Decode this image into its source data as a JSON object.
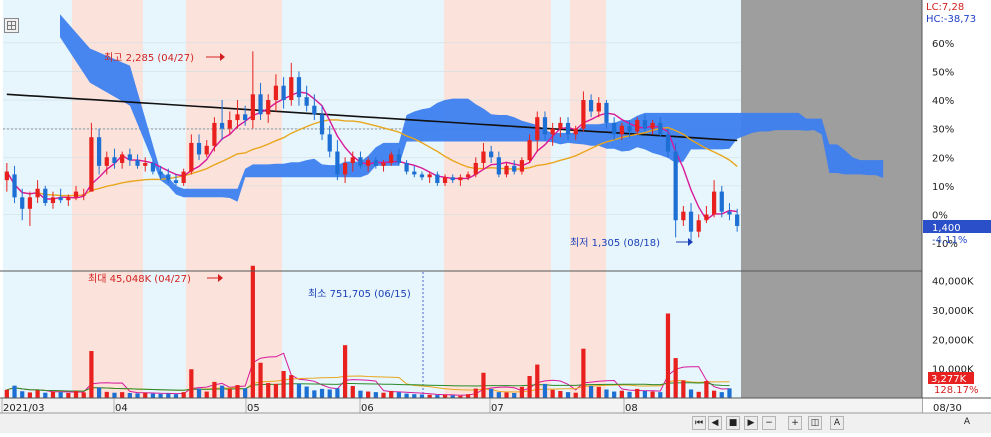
{
  "indicator": {
    "lc": "LC:7,28",
    "hc": "HC:-38,73"
  },
  "price_axis": {
    "ticks": [
      "60%",
      "50%",
      "40%",
      "30%",
      "20%",
      "10%",
      "0%"
    ],
    "hidden_tick": "-10%"
  },
  "volume_axis": {
    "ticks": [
      "40,000K",
      "30,000K",
      "20,000K",
      "10,000K"
    ]
  },
  "current": {
    "price": "1,400",
    "change": "-4.11%",
    "volume": "3,277K",
    "volume_ratio": "128.17%"
  },
  "annotations": {
    "high": "최고 2,285 (04/27)",
    "low": "최저 1,305 (08/18)",
    "vol_max": "최대 45,048K (04/27)",
    "vol_min": "최소 751,705 (06/15)"
  },
  "date_labels": [
    "2021/03",
    "04",
    "05",
    "06",
    "07",
    "08"
  ],
  "date_end": "08/30",
  "colors": {
    "up": "#e8201e",
    "down": "#1d6fd3",
    "cloud": "#3d7ff0",
    "ma_long": "#111111",
    "ma_mid": "#e9a61d",
    "ma_short": "#d9179a",
    "bg_blue": "#e7f6fc",
    "bg_pink": "#fbe3db",
    "future": "#9e9e9e"
  },
  "nav_icons": [
    "first-icon",
    "prev-icon",
    "stop-icon",
    "next-icon",
    "zoom-out-icon",
    "zoom-in-icon",
    "zoom-fit-icon",
    "font-size-icon"
  ],
  "nav_last_label": "A",
  "chart_data": [
    {
      "type": "candlestick",
      "y_unit": "% vs base price",
      "ylim": [
        -12,
        73
      ],
      "y_ticks": [
        0,
        10,
        20,
        30,
        40,
        50,
        60
      ],
      "x_start": "2021/03",
      "x_end": "08/30",
      "candles": [
        {
          "o": 12,
          "h": 18,
          "l": 8,
          "c": 15
        },
        {
          "o": 14,
          "h": 17,
          "l": 4,
          "c": 6
        },
        {
          "o": 6,
          "h": 9,
          "l": -2,
          "c": 2
        },
        {
          "o": 2,
          "h": 8,
          "l": -4,
          "c": 6
        },
        {
          "o": 6,
          "h": 12,
          "l": 4,
          "c": 9
        },
        {
          "o": 9,
          "h": 10,
          "l": 3,
          "c": 4
        },
        {
          "o": 4,
          "h": 8,
          "l": 2,
          "c": 6
        },
        {
          "o": 6,
          "h": 9,
          "l": 4,
          "c": 5
        },
        {
          "o": 5,
          "h": 7,
          "l": 3,
          "c": 6
        },
        {
          "o": 6,
          "h": 10,
          "l": 5,
          "c": 8
        },
        {
          "o": 7,
          "h": 9,
          "l": 5,
          "c": 7
        },
        {
          "o": 8,
          "h": 32,
          "l": 8,
          "c": 27
        },
        {
          "o": 27,
          "h": 30,
          "l": 14,
          "c": 17
        },
        {
          "o": 17,
          "h": 22,
          "l": 14,
          "c": 20
        },
        {
          "o": 20,
          "h": 23,
          "l": 16,
          "c": 18
        },
        {
          "o": 18,
          "h": 22,
          "l": 16,
          "c": 21
        },
        {
          "o": 21,
          "h": 23,
          "l": 17,
          "c": 19
        },
        {
          "o": 19,
          "h": 21,
          "l": 16,
          "c": 17
        },
        {
          "o": 17,
          "h": 20,
          "l": 15,
          "c": 18
        },
        {
          "o": 18,
          "h": 19,
          "l": 14,
          "c": 15
        },
        {
          "o": 15,
          "h": 17,
          "l": 12,
          "c": 14
        },
        {
          "o": 14,
          "h": 16,
          "l": 11,
          "c": 12
        },
        {
          "o": 12,
          "h": 14,
          "l": 10,
          "c": 11
        },
        {
          "o": 11,
          "h": 16,
          "l": 10,
          "c": 15
        },
        {
          "o": 15,
          "h": 28,
          "l": 14,
          "c": 25
        },
        {
          "o": 25,
          "h": 28,
          "l": 19,
          "c": 21
        },
        {
          "o": 21,
          "h": 26,
          "l": 20,
          "c": 24
        },
        {
          "o": 24,
          "h": 34,
          "l": 22,
          "c": 32
        },
        {
          "o": 32,
          "h": 40,
          "l": 26,
          "c": 30
        },
        {
          "o": 30,
          "h": 36,
          "l": 28,
          "c": 33
        },
        {
          "o": 33,
          "h": 40,
          "l": 30,
          "c": 35
        },
        {
          "o": 35,
          "h": 38,
          "l": 31,
          "c": 33
        },
        {
          "o": 33,
          "h": 57,
          "l": 30,
          "c": 42
        },
        {
          "o": 42,
          "h": 46,
          "l": 33,
          "c": 35
        },
        {
          "o": 35,
          "h": 42,
          "l": 32,
          "c": 40
        },
        {
          "o": 40,
          "h": 49,
          "l": 36,
          "c": 45
        },
        {
          "o": 45,
          "h": 48,
          "l": 37,
          "c": 40
        },
        {
          "o": 40,
          "h": 53,
          "l": 38,
          "c": 48
        },
        {
          "o": 48,
          "h": 50,
          "l": 38,
          "c": 41
        },
        {
          "o": 41,
          "h": 45,
          "l": 36,
          "c": 38
        },
        {
          "o": 38,
          "h": 42,
          "l": 33,
          "c": 35
        },
        {
          "o": 35,
          "h": 38,
          "l": 26,
          "c": 28
        },
        {
          "o": 28,
          "h": 31,
          "l": 20,
          "c": 22
        },
        {
          "o": 22,
          "h": 26,
          "l": 12,
          "c": 14
        },
        {
          "o": 14,
          "h": 20,
          "l": 11,
          "c": 18
        },
        {
          "o": 18,
          "h": 22,
          "l": 15,
          "c": 20
        },
        {
          "o": 20,
          "h": 22,
          "l": 16,
          "c": 17
        },
        {
          "o": 17,
          "h": 20,
          "l": 15,
          "c": 19
        },
        {
          "o": 19,
          "h": 20,
          "l": 16,
          "c": 17
        },
        {
          "o": 17,
          "h": 19,
          "l": 15,
          "c": 18
        },
        {
          "o": 18,
          "h": 22,
          "l": 17,
          "c": 21
        },
        {
          "o": 21,
          "h": 23,
          "l": 17,
          "c": 18
        },
        {
          "o": 18,
          "h": 19,
          "l": 14,
          "c": 15
        },
        {
          "o": 15,
          "h": 17,
          "l": 13,
          "c": 14
        },
        {
          "o": 14,
          "h": 15,
          "l": 12,
          "c": 13
        },
        {
          "o": 13,
          "h": 15,
          "l": 11,
          "c": 14
        },
        {
          "o": 14,
          "h": 15,
          "l": 10,
          "c": 11
        },
        {
          "o": 11,
          "h": 14,
          "l": 10,
          "c": 13
        },
        {
          "o": 13,
          "h": 14,
          "l": 11,
          "c": 12
        },
        {
          "o": 12,
          "h": 14,
          "l": 10,
          "c": 13
        },
        {
          "o": 13,
          "h": 15,
          "l": 12,
          "c": 14
        },
        {
          "o": 14,
          "h": 20,
          "l": 13,
          "c": 18
        },
        {
          "o": 18,
          "h": 25,
          "l": 16,
          "c": 22
        },
        {
          "o": 22,
          "h": 24,
          "l": 18,
          "c": 20
        },
        {
          "o": 20,
          "h": 22,
          "l": 13,
          "c": 14
        },
        {
          "o": 14,
          "h": 18,
          "l": 13,
          "c": 17
        },
        {
          "o": 17,
          "h": 19,
          "l": 14,
          "c": 15
        },
        {
          "o": 15,
          "h": 20,
          "l": 14,
          "c": 19
        },
        {
          "o": 19,
          "h": 28,
          "l": 18,
          "c": 26
        },
        {
          "o": 26,
          "h": 36,
          "l": 22,
          "c": 34
        },
        {
          "o": 34,
          "h": 36,
          "l": 26,
          "c": 28
        },
        {
          "o": 28,
          "h": 32,
          "l": 24,
          "c": 30
        },
        {
          "o": 30,
          "h": 34,
          "l": 27,
          "c": 32
        },
        {
          "o": 32,
          "h": 34,
          "l": 26,
          "c": 28
        },
        {
          "o": 28,
          "h": 31,
          "l": 26,
          "c": 30
        },
        {
          "o": 30,
          "h": 43,
          "l": 29,
          "c": 40
        },
        {
          "o": 40,
          "h": 42,
          "l": 34,
          "c": 36
        },
        {
          "o": 36,
          "h": 41,
          "l": 34,
          "c": 39
        },
        {
          "o": 39,
          "h": 40,
          "l": 30,
          "c": 32
        },
        {
          "o": 32,
          "h": 34,
          "l": 26,
          "c": 28
        },
        {
          "o": 28,
          "h": 32,
          "l": 26,
          "c": 31
        },
        {
          "o": 31,
          "h": 33,
          "l": 27,
          "c": 29
        },
        {
          "o": 29,
          "h": 34,
          "l": 28,
          "c": 33
        },
        {
          "o": 33,
          "h": 35,
          "l": 29,
          "c": 30
        },
        {
          "o": 30,
          "h": 33,
          "l": 28,
          "c": 32
        },
        {
          "o": 32,
          "h": 34,
          "l": 27,
          "c": 28
        },
        {
          "o": 28,
          "h": 30,
          "l": 20,
          "c": 22
        },
        {
          "o": 22,
          "h": 25,
          "l": -8,
          "c": -2
        },
        {
          "o": -2,
          "h": 3,
          "l": -4,
          "c": 1
        },
        {
          "o": 1,
          "h": 4,
          "l": -9,
          "c": -6
        },
        {
          "o": -6,
          "h": 0,
          "l": -8,
          "c": -2
        },
        {
          "o": -2,
          "h": 3,
          "l": -3,
          "c": 0
        },
        {
          "o": 0,
          "h": 12,
          "l": -1,
          "c": 8
        },
        {
          "o": 8,
          "h": 10,
          "l": -1,
          "c": 1
        },
        {
          "o": 1,
          "h": 4,
          "l": -2,
          "c": 0
        },
        {
          "o": 0,
          "h": 2,
          "l": -6,
          "c": -4
        }
      ]
    },
    {
      "type": "bar",
      "unit": "K",
      "ylim": [
        0,
        45048
      ],
      "y_ticks": [
        10000,
        20000,
        30000,
        40000
      ],
      "values": [
        2800,
        4200,
        2300,
        1900,
        2600,
        1800,
        2200,
        2000,
        1700,
        2400,
        1900,
        16000,
        3600,
        2100,
        1800,
        2000,
        1700,
        1600,
        1800,
        1500,
        1400,
        1500,
        1300,
        2000,
        9800,
        3200,
        2200,
        5500,
        4200,
        3100,
        4400,
        3300,
        45048,
        12000,
        5100,
        4800,
        9200,
        7800,
        4900,
        3900,
        2600,
        3100,
        2900,
        3300,
        18000,
        4100,
        2500,
        2200,
        2000,
        1800,
        2400,
        2000,
        1500,
        1300,
        1200,
        1100,
        1000,
        1100,
        900,
        752,
        1300,
        3200,
        8600,
        3100,
        2000,
        1900,
        1700,
        3800,
        7500,
        11400,
        4800,
        2800,
        2400,
        2000,
        1800,
        16800,
        4100,
        3800,
        2900,
        2200,
        2500,
        2100,
        3100,
        2400,
        2200,
        2000,
        28800,
        13600,
        6000,
        2900,
        2100,
        5800,
        2500,
        2000,
        3277
      ]
    }
  ]
}
